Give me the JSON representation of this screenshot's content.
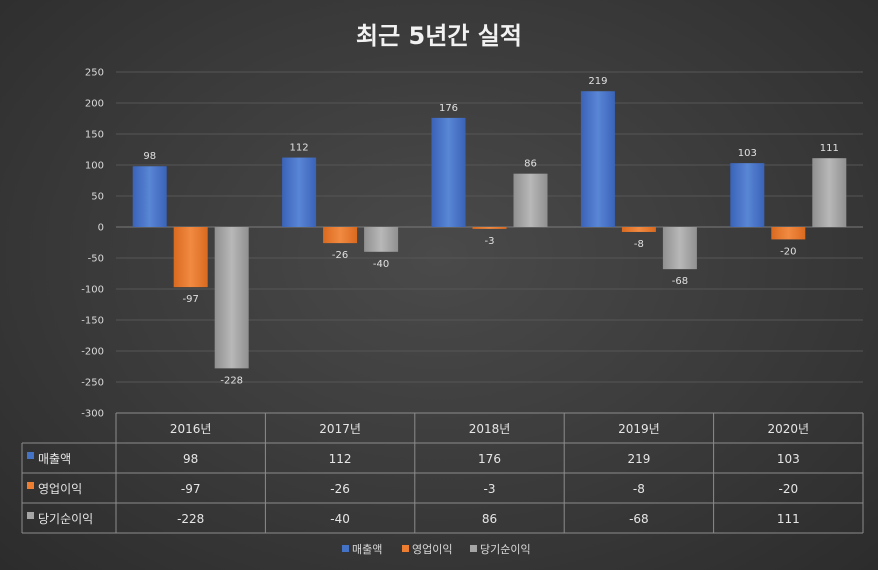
{
  "chart_data": {
    "type": "bar",
    "title": "최근 5년간 실적",
    "categories": [
      "2016년",
      "2017년",
      "2018년",
      "2019년",
      "2020년"
    ],
    "series": [
      {
        "name": "매출액",
        "values": [
          98,
          112,
          176,
          219,
          103
        ],
        "color": "#4472c4"
      },
      {
        "name": "영업이익",
        "values": [
          -97,
          -26,
          -3,
          -8,
          -20
        ],
        "color": "#ed7d31"
      },
      {
        "name": "당기순이익",
        "values": [
          -228,
          -40,
          86,
          -68,
          111
        ],
        "color": "#a5a5a5"
      }
    ],
    "ylim": [
      -300,
      250
    ],
    "yticks": [
      250,
      200,
      150,
      100,
      50,
      0,
      -50,
      -100,
      -150,
      -200,
      -250,
      -300
    ],
    "grid": true,
    "data_table": true,
    "legend_position": "bottom"
  }
}
